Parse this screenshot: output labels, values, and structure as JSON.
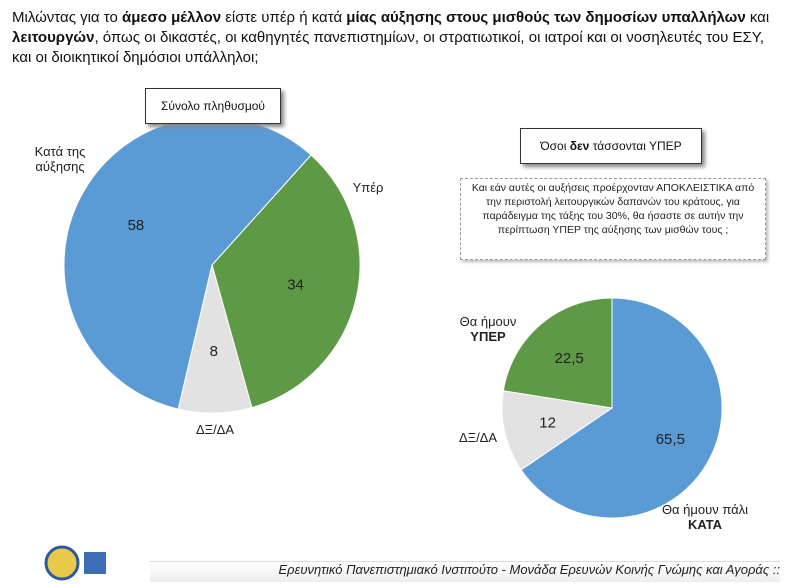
{
  "header": {
    "question": [
      {
        "text": "Μιλώντας για το ",
        "bold": false
      },
      {
        "text": "άμεσο μέλλον",
        "bold": true
      },
      {
        "text": " είστε υπέρ ή κατά ",
        "bold": false
      },
      {
        "text": "μίας αύξησης στους μισθούς των δημοσίων υπαλλήλων",
        "bold": true
      },
      {
        "text": " και ",
        "bold": false
      },
      {
        "text": "λειτουργών",
        "bold": true
      },
      {
        "text": ", όπως οι δικαστές, οι καθηγητές πανεπιστημίων, οι στρατιωτικοί, οι ιατροί και οι νοσηλευτές του ΕΣΥ, και οι διοικητικοί δημόσιοι υπάλληλοι;",
        "bold": false
      }
    ]
  },
  "chart_data": [
    {
      "type": "pie",
      "title": [
        {
          "text": "Σύνολο πληθυσμού",
          "bold": false
        }
      ],
      "categories": [
        "Υπέρ",
        "ΔΞ/ΔΑ",
        "Κατά της\nαύξησης"
      ],
      "values": [
        34,
        8,
        58
      ],
      "colors": [
        "#5e9a46",
        "#e2e2e2",
        "#5b9bd5"
      ]
    },
    {
      "type": "pie",
      "title": [
        {
          "text": "Όσοι ",
          "bold": false
        },
        {
          "text": "δεν",
          "bold": true
        },
        {
          "text": " τάσσονται ΥΠΕΡ",
          "bold": false
        }
      ],
      "subtitle": "Και εάν αυτές οι αυξήσεις προέρχονταν ΑΠΟΚΛΕΙΣΤΙΚΑ από την περιστολή λειτουργικών δαπανών του κράτους, για παράδειγμα της τάξης του 30%, θα ήσαστε σε αυτήν την περίπτωση ΥΠΕΡ της αύξησης των μισθών τους ;",
      "categories": [
        "Θα ήμουν πάλι\nΚΑΤΑ",
        "ΔΞ/ΔΑ",
        "Θα ήμουν\nΥΠΕΡ"
      ],
      "values": [
        65.5,
        12,
        22.5
      ],
      "value_labels": [
        "65,5",
        "12",
        "22,5"
      ],
      "colors": [
        "#5b9bd5",
        "#e2e2e2",
        "#5e9a46"
      ]
    }
  ],
  "footer": "Ερευνητικό Πανεπιστημιακό Ινστιτούτο - Μονάδα Ερευνών Κοινής Γνώμης και Αγοράς ::"
}
